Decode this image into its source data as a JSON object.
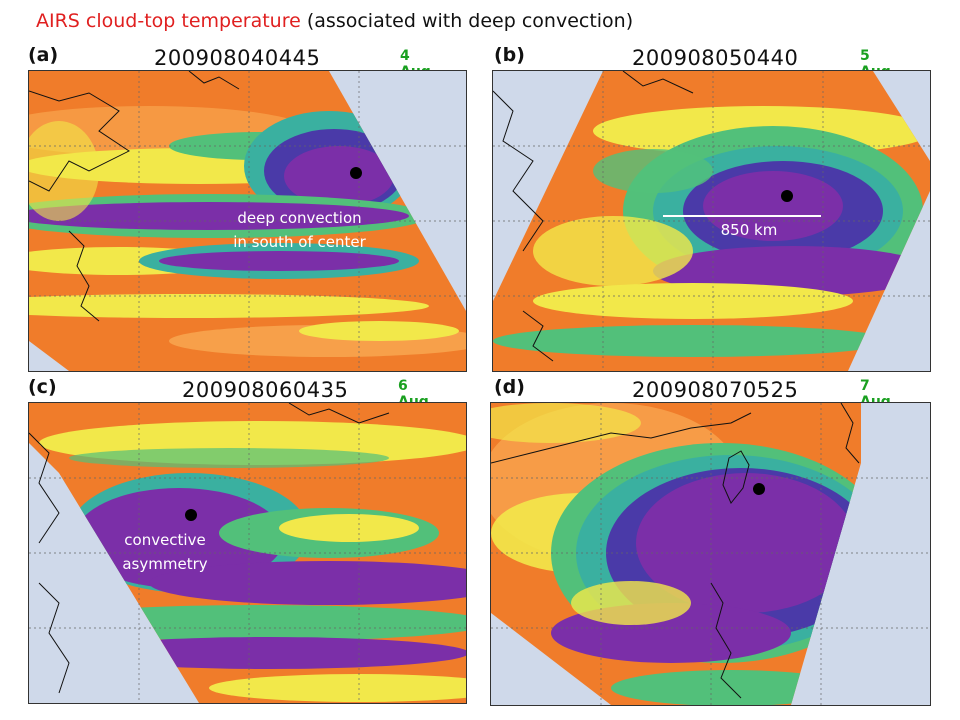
{
  "title": {
    "red_part": "AIRS cloud-top temperature",
    "black_part": "(associated with deep convection)"
  },
  "colors": {
    "title_red": "#e02020",
    "date_green": "#1aa020",
    "ocean": "#cfd9ea",
    "warm_orange": "#f07c2a",
    "deep_purple": "#7b2fa8",
    "yellow": "#f2e84a",
    "green": "#52c07a"
  },
  "panels": [
    {
      "label": "(a)",
      "timestamp": "200908040445",
      "date": "4 Aug",
      "annotation_line1": "deep convection",
      "annotation_line2": "in south of center"
    },
    {
      "label": "(b)",
      "timestamp": "200908050440",
      "date": "5 Aug",
      "annotation_line1": "850 km",
      "annotation_line2": ""
    },
    {
      "label": "(c)",
      "timestamp": "200908060435",
      "date": "6 Aug",
      "annotation_line1": "convective",
      "annotation_line2": "asymmetry"
    },
    {
      "label": "(d)",
      "timestamp": "200908070525",
      "date": "7 Aug",
      "annotation_line1": "",
      "annotation_line2": ""
    }
  ]
}
